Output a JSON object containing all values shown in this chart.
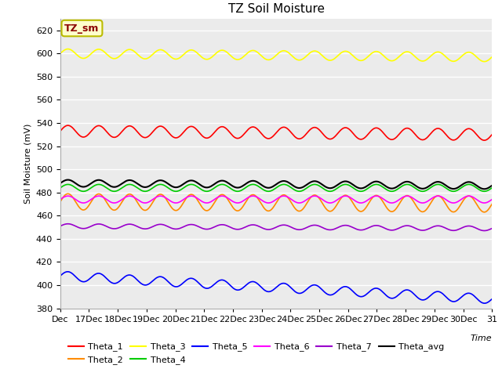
{
  "title": "TZ Soil Moisture",
  "ylabel": "Soil Moisture (mV)",
  "label_box": "TZ_sm",
  "background_color": "#ebebeb",
  "ylim": [
    380,
    630
  ],
  "yticks": [
    380,
    400,
    420,
    440,
    460,
    480,
    500,
    520,
    540,
    560,
    580,
    600,
    620
  ],
  "x_labels": [
    "Dec",
    "17Dec",
    "18Dec",
    "19Dec",
    "20Dec",
    "21Dec",
    "22Dec",
    "23Dec",
    "24Dec",
    "25Dec",
    "26Dec",
    "27Dec",
    "28Dec",
    "29Dec",
    "30Dec",
    "31"
  ],
  "series": {
    "Theta_1": {
      "color": "#ff0000",
      "base": 533,
      "amplitude": 5,
      "period": 1.0,
      "trend": -3.0,
      "noise": 0.0
    },
    "Theta_2": {
      "color": "#ff8c00",
      "base": 472,
      "amplitude": 7,
      "period": 1.0,
      "trend": -2.0,
      "noise": 0.0
    },
    "Theta_3": {
      "color": "#ffff00",
      "base": 600,
      "amplitude": 4,
      "period": 1.0,
      "trend": -3.0,
      "noise": 0.0
    },
    "Theta_4": {
      "color": "#00cc00",
      "base": 484,
      "amplitude": 3,
      "period": 1.0,
      "trend": 0.0,
      "noise": 0.0
    },
    "Theta_5": {
      "color": "#0000ff",
      "base": 408,
      "amplitude": 4,
      "period": 1.0,
      "trend": -20.0,
      "noise": 0.0
    },
    "Theta_6": {
      "color": "#ff00ff",
      "base": 474,
      "amplitude": 3,
      "period": 1.0,
      "trend": 0.0,
      "noise": 0.0
    },
    "Theta_7": {
      "color": "#9900cc",
      "base": 451,
      "amplitude": 2,
      "period": 1.0,
      "trend": -2.0,
      "noise": 0.0
    },
    "Theta_avg": {
      "color": "#000000",
      "base": 488,
      "amplitude": 3,
      "period": 1.0,
      "trend": -2.0,
      "noise": 0.0
    }
  },
  "n_points": 336,
  "legend_fontsize": 8,
  "title_fontsize": 11,
  "axis_fontsize": 8
}
